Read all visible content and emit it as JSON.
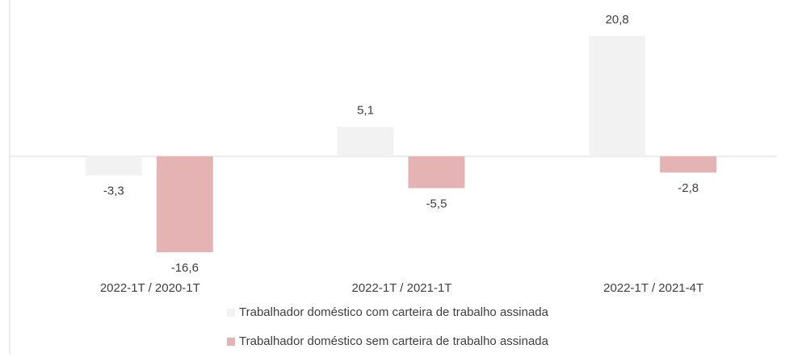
{
  "chart_data": {
    "type": "bar",
    "categories": [
      "2022-1T / 2020-1T",
      "2022-1T / 2021-1T",
      "2022-1T / 2021-4T"
    ],
    "series": [
      {
        "name": "Trabalhador doméstico com carteira de trabalho assinada",
        "color": "#f2f2f2",
        "values": [
          -3.3,
          5.1,
          20.8
        ],
        "value_labels": [
          "-3,3",
          "5,1",
          "20,8"
        ]
      },
      {
        "name": "Trabalhador doméstico sem carteira de trabalho assinada",
        "color": "#e6b3b4",
        "values": [
          -16.6,
          -5.5,
          -2.8
        ],
        "value_labels": [
          "-16,6",
          "-5,5",
          "-2,8"
        ]
      }
    ],
    "legend": "bottom"
  }
}
